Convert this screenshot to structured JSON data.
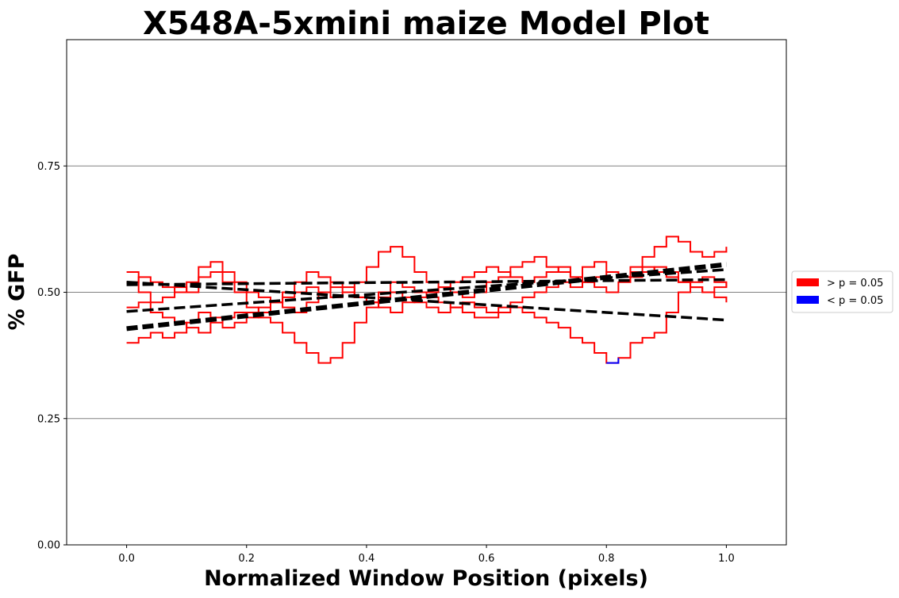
{
  "chart_data": {
    "type": "line",
    "title": "X548A-5xmini maize Model Plot",
    "xlabel": "Normalized Window Position (pixels)",
    "ylabel": "% GFP",
    "xlim": [
      -0.1,
      1.1
    ],
    "ylim": [
      0.0,
      1.0
    ],
    "x_ticks": [
      0.0,
      0.2,
      0.4,
      0.6,
      0.8,
      1.0
    ],
    "x_tick_labels": [
      "0.0",
      "0.2",
      "0.4",
      "0.6",
      "0.8",
      "1.0"
    ],
    "y_ticks": [
      0.0,
      0.25,
      0.5,
      0.75
    ],
    "y_tick_labels": [
      "0.00",
      "0.25",
      "0.50",
      "0.75"
    ],
    "grid": "horizontal",
    "legend": {
      "placement": "outside-right",
      "entries": [
        {
          "label": "> p = 0.05",
          "color": "#ff0000"
        },
        {
          "label": "< p = 0.05",
          "color": "#0000ff"
        }
      ]
    },
    "colors": {
      "not_significant": "#ff0000",
      "significant": "#0000ff",
      "fit": "#000000",
      "grid": "#808080"
    },
    "series": [
      {
        "x": [
          0.0,
          0.02,
          0.04,
          0.06,
          0.08,
          0.1,
          0.12,
          0.14,
          0.16,
          0.18,
          0.2,
          0.22,
          0.24,
          0.26,
          0.28,
          0.3,
          0.32,
          0.34,
          0.36,
          0.38,
          0.4,
          0.42,
          0.44,
          0.46,
          0.48,
          0.5,
          0.52,
          0.54,
          0.56,
          0.58,
          0.6,
          0.62,
          0.64,
          0.66,
          0.68,
          0.7,
          0.72,
          0.74,
          0.76,
          0.78,
          0.8,
          0.82,
          0.84,
          0.86,
          0.88,
          0.9,
          0.92,
          0.94,
          0.96,
          0.98,
          1.0
        ],
        "y": [
          0.54,
          0.5,
          0.48,
          0.49,
          0.51,
          0.5,
          0.53,
          0.54,
          0.52,
          0.5,
          0.47,
          0.45,
          0.44,
          0.42,
          0.4,
          0.38,
          0.36,
          0.37,
          0.4,
          0.44,
          0.47,
          0.5,
          0.52,
          0.51,
          0.5,
          0.49,
          0.48,
          0.47,
          0.46,
          0.45,
          0.45,
          0.46,
          0.47,
          0.46,
          0.45,
          0.44,
          0.43,
          0.41,
          0.4,
          0.38,
          0.36,
          0.37,
          0.4,
          0.41,
          0.42,
          0.46,
          0.5,
          0.52,
          0.53,
          0.52,
          0.51
        ],
        "significant": [
          [
            0.79,
            0.83
          ]
        ]
      },
      {
        "x": [
          0.0,
          0.02,
          0.04,
          0.06,
          0.08,
          0.1,
          0.12,
          0.14,
          0.16,
          0.18,
          0.2,
          0.22,
          0.24,
          0.26,
          0.28,
          0.3,
          0.32,
          0.34,
          0.36,
          0.38,
          0.4,
          0.42,
          0.44,
          0.46,
          0.48,
          0.5,
          0.52,
          0.54,
          0.56,
          0.58,
          0.6,
          0.62,
          0.64,
          0.66,
          0.68,
          0.7,
          0.72,
          0.74,
          0.76,
          0.78,
          0.8,
          0.82,
          0.84,
          0.86,
          0.88,
          0.9,
          0.92,
          0.94,
          0.96,
          0.98,
          1.0
        ],
        "y": [
          0.4,
          0.41,
          0.42,
          0.41,
          0.42,
          0.44,
          0.46,
          0.45,
          0.43,
          0.44,
          0.46,
          0.47,
          0.48,
          0.49,
          0.5,
          0.51,
          0.5,
          0.49,
          0.5,
          0.52,
          0.55,
          0.58,
          0.59,
          0.57,
          0.54,
          0.52,
          0.51,
          0.5,
          0.49,
          0.5,
          0.52,
          0.53,
          0.55,
          0.56,
          0.57,
          0.55,
          0.54,
          0.53,
          0.55,
          0.56,
          0.54,
          0.53,
          0.55,
          0.57,
          0.59,
          0.61,
          0.6,
          0.58,
          0.57,
          0.58,
          0.59
        ],
        "significant": []
      },
      {
        "x": [
          0.0,
          0.02,
          0.04,
          0.06,
          0.08,
          0.1,
          0.12,
          0.14,
          0.16,
          0.18,
          0.2,
          0.22,
          0.24,
          0.26,
          0.28,
          0.3,
          0.32,
          0.34,
          0.36,
          0.38,
          0.4,
          0.42,
          0.44,
          0.46,
          0.48,
          0.5,
          0.52,
          0.54,
          0.56,
          0.58,
          0.6,
          0.62,
          0.64,
          0.66,
          0.68,
          0.7,
          0.72,
          0.74,
          0.76,
          0.78,
          0.8,
          0.82,
          0.84,
          0.86,
          0.88,
          0.9,
          0.92,
          0.94,
          0.96,
          0.98,
          1.0
        ],
        "y": [
          0.47,
          0.48,
          0.46,
          0.45,
          0.44,
          0.43,
          0.42,
          0.44,
          0.45,
          0.46,
          0.45,
          0.46,
          0.48,
          0.5,
          0.52,
          0.54,
          0.53,
          0.51,
          0.5,
          0.49,
          0.48,
          0.47,
          0.46,
          0.48,
          0.49,
          0.5,
          0.51,
          0.52,
          0.53,
          0.54,
          0.55,
          0.54,
          0.53,
          0.52,
          0.53,
          0.54,
          0.55,
          0.53,
          0.52,
          0.51,
          0.5,
          0.52,
          0.53,
          0.54,
          0.55,
          0.54,
          0.52,
          0.51,
          0.5,
          0.49,
          0.48
        ],
        "significant": []
      },
      {
        "x": [
          0.0,
          0.02,
          0.04,
          0.06,
          0.08,
          0.1,
          0.12,
          0.14,
          0.16,
          0.18,
          0.2,
          0.22,
          0.24,
          0.26,
          0.28,
          0.3,
          0.32,
          0.34,
          0.36,
          0.38,
          0.4,
          0.42,
          0.44,
          0.46,
          0.48,
          0.5,
          0.52,
          0.54,
          0.56,
          0.58,
          0.6,
          0.62,
          0.64,
          0.66,
          0.68,
          0.7,
          0.72,
          0.74,
          0.76,
          0.78,
          0.8,
          0.82,
          0.84,
          0.86,
          0.88,
          0.9,
          0.92,
          0.94,
          0.96,
          0.98,
          1.0
        ],
        "y": [
          0.52,
          0.53,
          0.52,
          0.51,
          0.5,
          0.52,
          0.55,
          0.56,
          0.54,
          0.52,
          0.5,
          0.49,
          0.48,
          0.47,
          0.46,
          0.48,
          0.5,
          0.52,
          0.51,
          0.49,
          0.48,
          0.49,
          0.5,
          0.49,
          0.48,
          0.47,
          0.46,
          0.47,
          0.48,
          0.47,
          0.46,
          0.47,
          0.48,
          0.49,
          0.5,
          0.51,
          0.52,
          0.51,
          0.52,
          0.53,
          0.54,
          0.53,
          0.54,
          0.55,
          0.54,
          0.53,
          0.52,
          0.51,
          0.5,
          0.51,
          0.52
        ],
        "significant": []
      }
    ],
    "fit_lines": [
      {
        "x": [
          0.0,
          1.0
        ],
        "y": [
          0.52,
          0.445
        ],
        "width": 3.5
      },
      {
        "x": [
          0.0,
          1.0
        ],
        "y": [
          0.515,
          0.525
        ],
        "width": 3.5
      },
      {
        "x": [
          0.0,
          1.0
        ],
        "y": [
          0.462,
          0.545
        ],
        "width": 3.5
      },
      {
        "x": [
          0.0,
          1.0
        ],
        "y": [
          0.428,
          0.555
        ],
        "width": 6
      }
    ]
  }
}
